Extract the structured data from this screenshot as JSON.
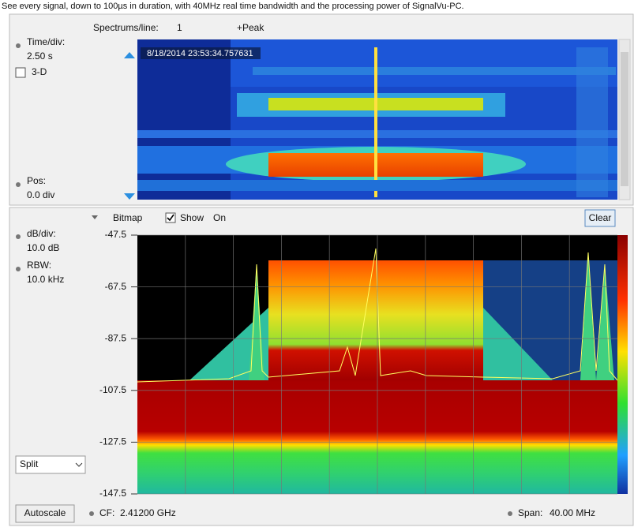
{
  "caption": "See every signal, down to 100µs in duration, with 40MHz real time bandwidth and the processing power of SignalVu-PC.",
  "waterfall": {
    "spectrums_label": "Spectrums/line:",
    "spectrums_value": "1",
    "detection": "+Peak",
    "time_div_label": "Time/div:",
    "time_div_value": "2.50 s",
    "three_d": "3-D",
    "timestamp": "8/18/2014 23:53:34.757631",
    "pos_label": "Pos:",
    "pos_value": "0.0 div"
  },
  "spectrum": {
    "display": "Bitmap",
    "show": "Show",
    "show_state": "On",
    "clear": "Clear",
    "db_div_label": "dB/div:",
    "db_div_value": "10.0 dB",
    "rbw_label": "RBW:",
    "rbw_value": "10.0 kHz",
    "ylim": [
      -147.5,
      -47.5
    ],
    "yticks": [
      -47.5,
      -67.5,
      -87.5,
      -107.5,
      -127.5,
      -147.5
    ],
    "mode": "Split",
    "autoscale": "Autoscale",
    "cf_label": "CF:",
    "cf_value": "2.41200 GHz",
    "span_label": "Span:",
    "span_value": "40.00 MHz"
  }
}
